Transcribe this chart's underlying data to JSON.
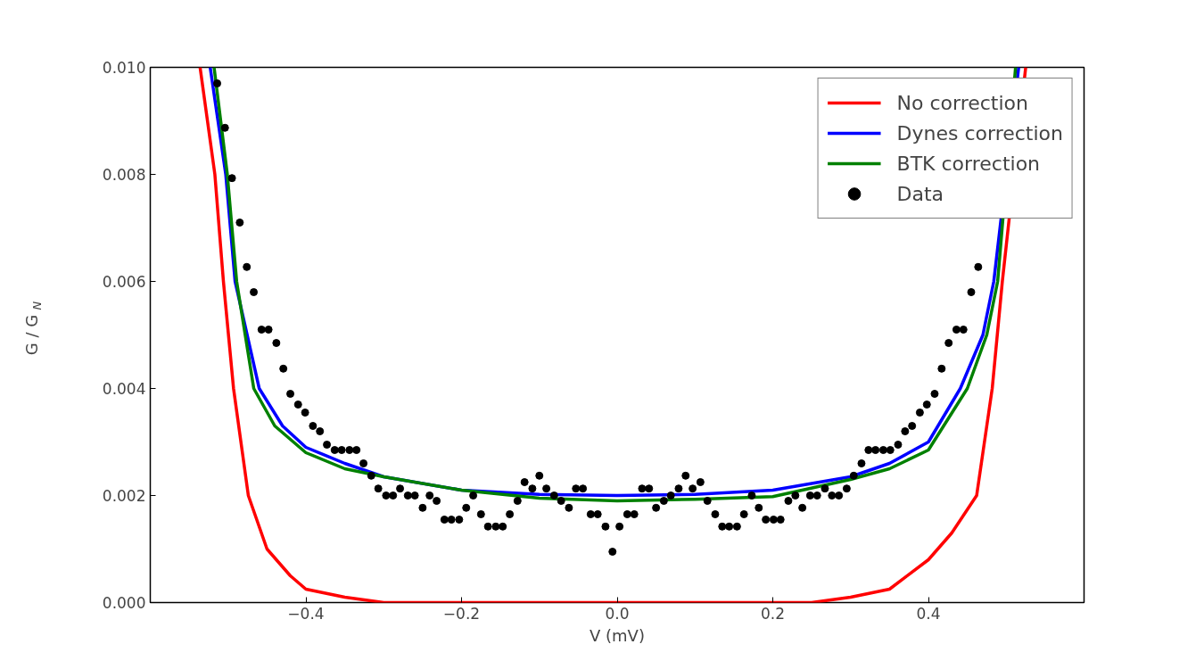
{
  "chart_data": {
    "type": "line",
    "xlabel": "V (mV)",
    "ylabel": "G / G$_{N}$",
    "xlim": [
      -0.6,
      0.6
    ],
    "ylim": [
      0,
      0.01
    ],
    "xticks": [
      {
        "value": -0.4,
        "label": "−0.4"
      },
      {
        "value": -0.2,
        "label": "−0.2"
      },
      {
        "value": 0,
        "label": "0.0"
      },
      {
        "value": 0.2,
        "label": "0.2"
      },
      {
        "value": 0.4,
        "label": "0.4"
      }
    ],
    "yticks": [
      {
        "value": 0,
        "label": "0.000"
      },
      {
        "value": 0.002,
        "label": "0.002"
      },
      {
        "value": 0.004,
        "label": "0.004"
      },
      {
        "value": 0.006,
        "label": "0.006"
      },
      {
        "value": 0.008,
        "label": "0.008"
      },
      {
        "value": 0.01,
        "label": "0.010"
      }
    ],
    "grid": false,
    "legend": "top right",
    "marker": "none",
    "line_style": "solid",
    "series": [
      {
        "name": "No correction",
        "color": "#ff0000",
        "x": [
          -0.536,
          -0.517,
          -0.506,
          -0.493,
          -0.474,
          -0.45,
          -0.42,
          -0.4,
          -0.35,
          -0.3,
          -0.25,
          -0.1,
          0.1,
          0.25,
          0.3,
          0.35,
          0.4,
          0.43,
          0.462,
          0.482,
          0.495,
          0.525
        ],
        "values": [
          0.01,
          0.008,
          0.006,
          0.004,
          0.002,
          0.001,
          0.0005,
          0.00025,
          0.0001,
          0,
          0,
          0,
          0,
          0,
          0.0001,
          0.00025,
          0.0008,
          0.0013,
          0.002,
          0.004,
          0.006,
          0.01
        ]
      },
      {
        "name": "Dynes correction",
        "color": "#0000ff",
        "x": [
          -0.523,
          -0.503,
          -0.491,
          -0.46,
          -0.43,
          -0.4,
          -0.35,
          -0.3,
          -0.2,
          -0.1,
          0,
          0.1,
          0.2,
          0.3,
          0.35,
          0.4,
          0.441,
          0.47,
          0.484,
          0.516
        ],
        "values": [
          0.01,
          0.008,
          0.006,
          0.004,
          0.0033,
          0.0029,
          0.0026,
          0.00235,
          0.0021,
          0.00202,
          0.002,
          0.00202,
          0.0021,
          0.00235,
          0.0026,
          0.003,
          0.004,
          0.005,
          0.006,
          0.01
        ]
      },
      {
        "name": "BTK correction",
        "color": "#008000",
        "x": [
          -0.518,
          -0.501,
          -0.489,
          -0.467,
          -0.44,
          -0.4,
          -0.35,
          -0.3,
          -0.2,
          -0.1,
          0,
          0.1,
          0.2,
          0.3,
          0.35,
          0.4,
          0.45,
          0.475,
          0.489,
          0.512
        ],
        "values": [
          0.01,
          0.008,
          0.006,
          0.004,
          0.0033,
          0.0028,
          0.0025,
          0.00235,
          0.0021,
          0.00195,
          0.0019,
          0.00193,
          0.00198,
          0.0023,
          0.0025,
          0.00285,
          0.004,
          0.005,
          0.006,
          0.01
        ]
      },
      {
        "name": "Data",
        "type": "scatter",
        "marker": "circle",
        "color": "#000000",
        "x": [
          -0.514,
          -0.504,
          -0.495,
          -0.485,
          -0.476,
          -0.467,
          -0.457,
          -0.448,
          -0.438,
          -0.429,
          -0.42,
          -0.41,
          -0.401,
          -0.391,
          -0.382,
          -0.373,
          -0.363,
          -0.354,
          -0.344,
          -0.335,
          -0.326,
          -0.316,
          -0.307,
          -0.297,
          -0.288,
          -0.279,
          -0.269,
          -0.26,
          -0.25,
          -0.241,
          -0.232,
          -0.222,
          -0.213,
          -0.203,
          -0.194,
          -0.185,
          -0.175,
          -0.166,
          -0.156,
          -0.147,
          -0.138,
          -0.128,
          -0.119,
          -0.109,
          -0.1,
          -0.091,
          -0.081,
          -0.072,
          -0.062,
          -0.053,
          -0.044,
          -0.034,
          -0.025,
          -0.015,
          -0.006,
          0.003,
          0.013,
          0.022,
          0.032,
          0.041,
          0.05,
          0.06,
          0.069,
          0.079,
          0.088,
          0.097,
          0.107,
          0.116,
          0.126,
          0.135,
          0.144,
          0.154,
          0.163,
          0.173,
          0.182,
          0.191,
          0.201,
          0.21,
          0.22,
          0.229,
          0.238,
          0.248,
          0.257,
          0.267,
          0.276,
          0.285,
          0.295,
          0.304,
          0.314,
          0.323,
          0.332,
          0.342,
          0.351,
          0.361,
          0.37,
          0.379,
          0.389,
          0.398,
          0.408,
          0.417,
          0.426,
          0.436,
          0.445,
          0.455,
          0.464
        ],
        "values": [
          0.0097,
          0.00887,
          0.00793,
          0.0071,
          0.00627,
          0.0058,
          0.0051,
          0.0051,
          0.00485,
          0.00437,
          0.0039,
          0.0037,
          0.00355,
          0.0033,
          0.0032,
          0.00295,
          0.00285,
          0.00285,
          0.00285,
          0.00285,
          0.0026,
          0.00237,
          0.00213,
          0.002,
          0.002,
          0.00213,
          0.002,
          0.002,
          0.00177,
          0.002,
          0.0019,
          0.00155,
          0.00155,
          0.00155,
          0.00177,
          0.002,
          0.00165,
          0.00142,
          0.00142,
          0.00142,
          0.00165,
          0.0019,
          0.00225,
          0.00213,
          0.00237,
          0.00213,
          0.002,
          0.0019,
          0.00177,
          0.00213,
          0.00213,
          0.00165,
          0.00165,
          0.00142,
          0.00095,
          0.00142,
          0.00165,
          0.00165,
          0.00213,
          0.00213,
          0.00177,
          0.0019,
          0.002,
          0.00213,
          0.00237,
          0.00213,
          0.00225,
          0.0019,
          0.00165,
          0.00142,
          0.00142,
          0.00142,
          0.00165,
          0.002,
          0.00177,
          0.00155,
          0.00155,
          0.00155,
          0.0019,
          0.002,
          0.00177,
          0.002,
          0.002,
          0.00213,
          0.002,
          0.002,
          0.00213,
          0.00237,
          0.0026,
          0.00285,
          0.00285,
          0.00285,
          0.00285,
          0.00295,
          0.0032,
          0.0033,
          0.00355,
          0.0037,
          0.0039,
          0.00437,
          0.00485,
          0.0051,
          0.0051,
          0.0058,
          0.00627
        ]
      }
    ]
  }
}
